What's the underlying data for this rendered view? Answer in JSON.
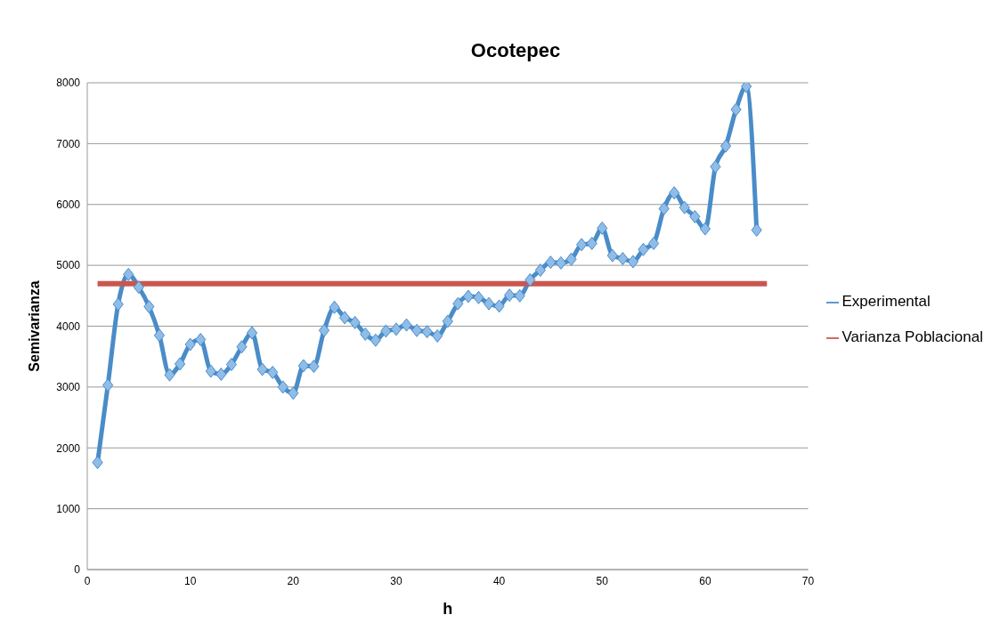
{
  "chart_data": {
    "type": "line",
    "title": "Ocotepec",
    "xlabel": "h",
    "ylabel": "Semivarianza",
    "xlim": [
      0,
      70
    ],
    "xticks": [
      0,
      10,
      20,
      30,
      40,
      50,
      60,
      70
    ],
    "ylim": [
      0,
      8000
    ],
    "yticks": [
      0,
      1000,
      2000,
      3000,
      4000,
      5000,
      6000,
      7000,
      8000
    ],
    "grid": "y",
    "legend": "right",
    "series": [
      {
        "name": "Experimental",
        "color": "#4a8cc8",
        "marker": "diamond",
        "x": [
          1,
          2,
          3,
          4,
          5,
          6,
          7,
          8,
          9,
          10,
          11,
          12,
          13,
          14,
          15,
          16,
          17,
          18,
          19,
          20,
          21,
          22,
          23,
          24,
          25,
          26,
          27,
          28,
          29,
          30,
          31,
          32,
          33,
          34,
          35,
          36,
          37,
          38,
          39,
          40,
          41,
          42,
          43,
          44,
          45,
          46,
          47,
          48,
          49,
          50,
          51,
          52,
          53,
          54,
          55,
          56,
          57,
          58,
          59,
          60,
          61,
          62,
          63,
          64,
          65
        ],
        "values": [
          1760,
          3030,
          4360,
          4850,
          4640,
          4320,
          3850,
          3200,
          3380,
          3700,
          3780,
          3260,
          3210,
          3370,
          3660,
          3890,
          3290,
          3240,
          3000,
          2900,
          3350,
          3340,
          3930,
          4310,
          4140,
          4060,
          3870,
          3770,
          3920,
          3950,
          4020,
          3930,
          3910,
          3840,
          4080,
          4370,
          4490,
          4470,
          4370,
          4330,
          4510,
          4500,
          4760,
          4920,
          5050,
          5040,
          5100,
          5340,
          5360,
          5610,
          5160,
          5110,
          5060,
          5260,
          5360,
          5930,
          6190,
          5950,
          5800,
          5600,
          6620,
          6960,
          7560,
          7940,
          5580
        ]
      },
      {
        "name": "Varianza Poblacional",
        "color": "#c9574f",
        "marker": "none",
        "x": [
          1,
          66
        ],
        "values": [
          4700,
          4700
        ]
      }
    ]
  }
}
